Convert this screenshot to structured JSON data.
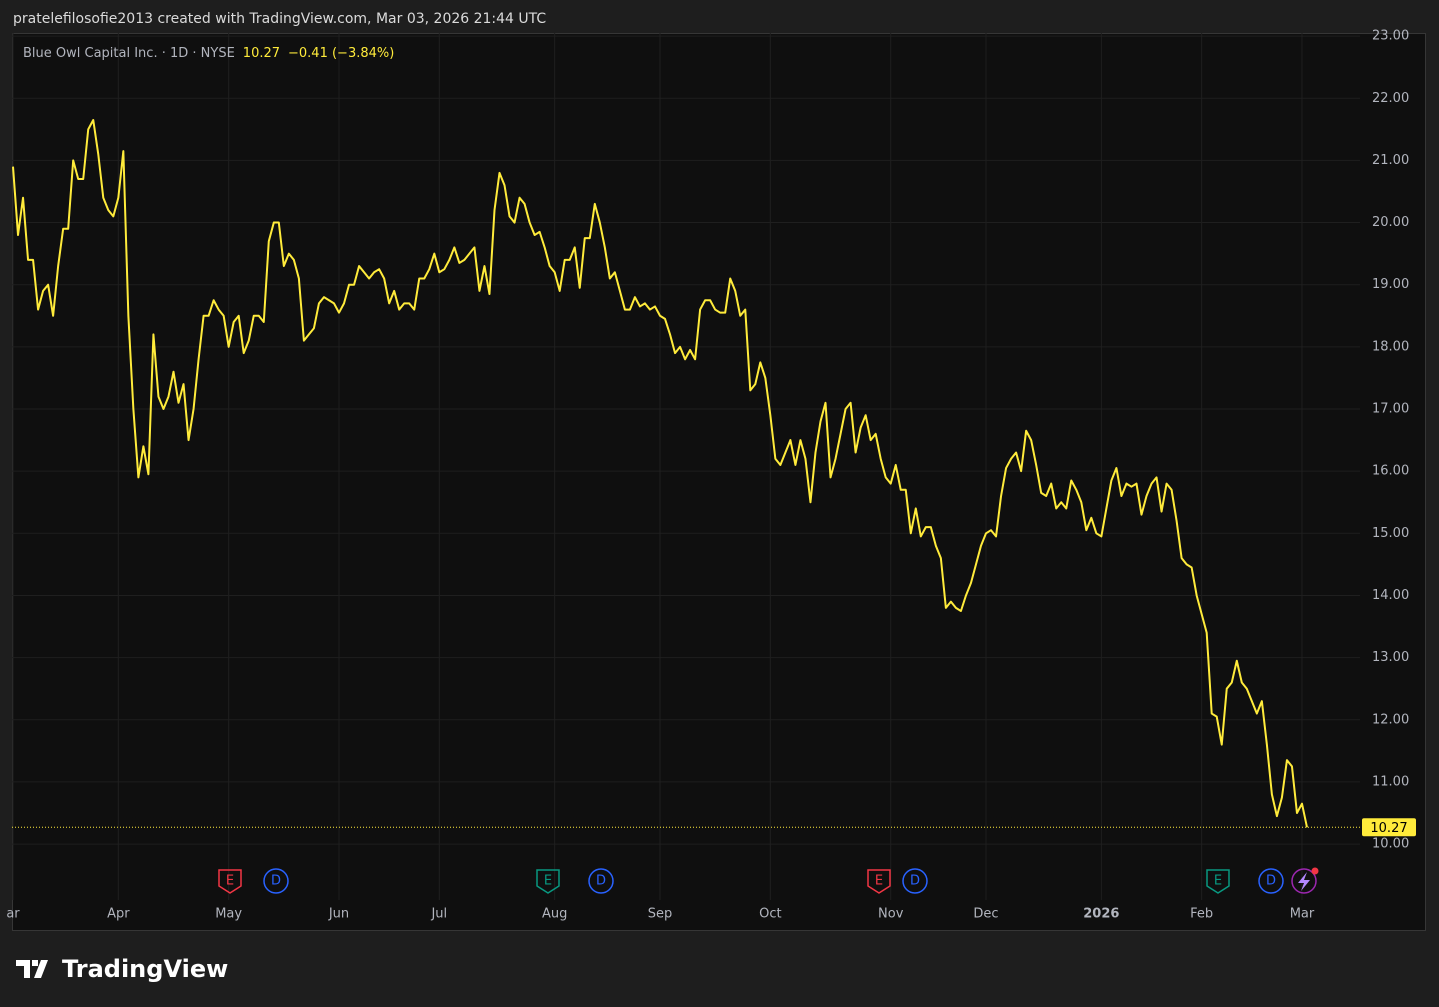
{
  "chart_data": {
    "type": "line",
    "attribution": "pratelefilosofie2013 created with TradingView.com, Mar 03, 2026 21:44 UTC",
    "symbol_title": "Blue Owl Capital Inc. · 1D · NYSE",
    "last_price": 10.27,
    "change": "−0.41 (−3.84%)",
    "brand": "TradingView",
    "color": "#ffeb3b",
    "grid": true,
    "ylim": [
      9.1,
      23.05
    ],
    "yticks": [
      {
        "value": 10,
        "label": "10.00"
      },
      {
        "value": 11,
        "label": "11.00"
      },
      {
        "value": 12,
        "label": "12.00"
      },
      {
        "value": 13,
        "label": "13.00"
      },
      {
        "value": 14,
        "label": "14.00"
      },
      {
        "value": 15,
        "label": "15.00"
      },
      {
        "value": 16,
        "label": "16.00"
      },
      {
        "value": 17,
        "label": "17.00"
      },
      {
        "value": 18,
        "label": "18.00"
      },
      {
        "value": 19,
        "label": "19.00"
      },
      {
        "value": 20,
        "label": "20.00"
      },
      {
        "value": 21,
        "label": "21.00"
      },
      {
        "value": 22,
        "label": "22.00"
      },
      {
        "value": 23,
        "label": "23.00"
      }
    ],
    "events": [
      {
        "label": "E",
        "color": "#f23645"
      },
      {
        "label": "D",
        "color": "#2962ff"
      },
      {
        "label": "E",
        "color": "#089981"
      },
      {
        "label": "D",
        "color": "#2962ff"
      },
      {
        "label": "E",
        "color": "#f23645"
      },
      {
        "label": "D",
        "color": "#2962ff"
      },
      {
        "label": "E",
        "color": "#089981"
      },
      {
        "label": "D",
        "color": "#2962ff"
      }
    ],
    "categories": [
      "ar",
      null,
      null,
      null,
      null,
      null,
      null,
      null,
      null,
      null,
      null,
      null,
      null,
      null,
      null,
      null,
      null,
      null,
      null,
      null,
      null,
      "Apr",
      null,
      null,
      null,
      null,
      null,
      null,
      null,
      null,
      null,
      null,
      null,
      null,
      null,
      null,
      null,
      null,
      null,
      null,
      null,
      null,
      null,
      "May",
      null,
      null,
      null,
      null,
      null,
      null,
      null,
      null,
      null,
      null,
      null,
      null,
      null,
      null,
      null,
      null,
      null,
      null,
      null,
      null,
      null,
      "Jun",
      null,
      null,
      null,
      null,
      null,
      null,
      null,
      null,
      null,
      null,
      null,
      null,
      null,
      null,
      null,
      null,
      null,
      null,
      null,
      "Jul",
      null,
      null,
      null,
      null,
      null,
      null,
      null,
      null,
      null,
      null,
      null,
      null,
      null,
      null,
      null,
      null,
      null,
      null,
      null,
      null,
      null,
      null,
      "Aug",
      null,
      null,
      null,
      null,
      null,
      null,
      null,
      null,
      null,
      null,
      null,
      null,
      null,
      null,
      null,
      null,
      null,
      null,
      null,
      null,
      "Sep",
      null,
      null,
      null,
      null,
      null,
      null,
      null,
      null,
      null,
      null,
      null,
      null,
      null,
      null,
      null,
      null,
      null,
      null,
      null,
      null,
      null,
      "Oct",
      null,
      null,
      null,
      null,
      null,
      null,
      null,
      null,
      null,
      null,
      null,
      null,
      null,
      null,
      null,
      null,
      null,
      null,
      null,
      null,
      null,
      null,
      null,
      "Nov",
      null,
      null,
      null,
      null,
      null,
      null,
      null,
      null,
      null,
      null,
      null,
      null,
      null,
      null,
      null,
      null,
      null,
      null,
      "Dec",
      null,
      null,
      null,
      null,
      null,
      null,
      null,
      null,
      null,
      null,
      null,
      null,
      null,
      null,
      null,
      null,
      null,
      null,
      null,
      null,
      null,
      null,
      "2026",
      null,
      null,
      null,
      null,
      null,
      null,
      null,
      null,
      null,
      null,
      null,
      null,
      null,
      null,
      null,
      null,
      null,
      null,
      null,
      "Feb",
      null,
      null,
      null,
      null,
      null,
      null,
      null,
      null,
      null,
      null,
      null,
      null,
      null,
      null,
      null,
      null,
      null,
      null,
      null,
      "Mar",
      null
    ],
    "values": [
      20.9,
      19.8,
      20.4,
      19.4,
      19.4,
      18.6,
      18.9,
      19.0,
      18.5,
      19.3,
      19.9,
      19.9,
      21.0,
      20.7,
      20.7,
      21.5,
      21.65,
      21.1,
      20.4,
      20.2,
      20.1,
      20.4,
      21.15,
      18.5,
      17.0,
      15.9,
      16.4,
      15.95,
      18.2,
      17.2,
      17.0,
      17.2,
      17.6,
      17.1,
      17.4,
      16.5,
      17.0,
      17.8,
      18.5,
      18.5,
      18.75,
      18.6,
      18.5,
      18.0,
      18.4,
      18.5,
      17.9,
      18.1,
      18.5,
      18.5,
      18.4,
      19.7,
      20.0,
      20.0,
      19.3,
      19.5,
      19.4,
      19.1,
      18.1,
      18.2,
      18.3,
      18.7,
      18.8,
      18.75,
      18.7,
      18.55,
      18.7,
      19.0,
      19.0,
      19.3,
      19.2,
      19.1,
      19.2,
      19.25,
      19.1,
      18.7,
      18.9,
      18.6,
      18.7,
      18.7,
      18.6,
      19.1,
      19.1,
      19.25,
      19.5,
      19.2,
      19.25,
      19.4,
      19.6,
      19.35,
      19.4,
      19.5,
      19.6,
      18.9,
      19.3,
      18.85,
      20.2,
      20.8,
      20.6,
      20.1,
      20.0,
      20.4,
      20.3,
      20.0,
      19.8,
      19.85,
      19.6,
      19.3,
      19.2,
      18.9,
      19.4,
      19.4,
      19.6,
      18.95,
      19.75,
      19.75,
      20.3,
      20.0,
      19.6,
      19.1,
      19.2,
      18.9,
      18.6,
      18.6,
      18.8,
      18.65,
      18.7,
      18.6,
      18.65,
      18.5,
      18.45,
      18.2,
      17.9,
      18.0,
      17.8,
      17.95,
      17.8,
      18.6,
      18.75,
      18.75,
      18.6,
      18.55,
      18.55,
      19.1,
      18.9,
      18.5,
      18.6,
      17.3,
      17.4,
      17.75,
      17.5,
      16.9,
      16.2,
      16.1,
      16.3,
      16.5,
      16.1,
      16.5,
      16.2,
      15.5,
      16.3,
      16.8,
      17.1,
      15.9,
      16.2,
      16.6,
      17.0,
      17.1,
      16.3,
      16.7,
      16.9,
      16.5,
      16.6,
      16.2,
      15.9,
      15.8,
      16.1,
      15.7,
      15.7,
      15.0,
      15.4,
      14.95,
      15.1,
      15.1,
      14.8,
      14.6,
      13.8,
      13.9,
      13.8,
      13.75,
      14.0,
      14.2,
      14.5,
      14.8,
      15.0,
      15.05,
      14.95,
      15.6,
      16.05,
      16.2,
      16.3,
      16.0,
      16.65,
      16.5,
      16.1,
      15.65,
      15.6,
      15.8,
      15.4,
      15.5,
      15.4,
      15.85,
      15.7,
      15.5,
      15.05,
      15.25,
      15.0,
      14.95,
      15.4,
      15.85,
      16.05,
      15.6,
      15.8,
      15.75,
      15.8,
      15.3,
      15.6,
      15.8,
      15.9,
      15.35,
      15.8,
      15.7,
      15.2,
      14.6,
      14.5,
      14.45,
      14.0,
      13.7,
      13.4,
      12.1,
      12.05,
      11.6,
      12.5,
      12.6,
      12.95,
      12.6,
      12.5,
      12.3,
      12.1,
      12.3,
      11.6,
      10.8,
      10.45,
      10.75,
      11.35,
      11.25,
      10.5,
      10.65,
      10.27
    ]
  }
}
